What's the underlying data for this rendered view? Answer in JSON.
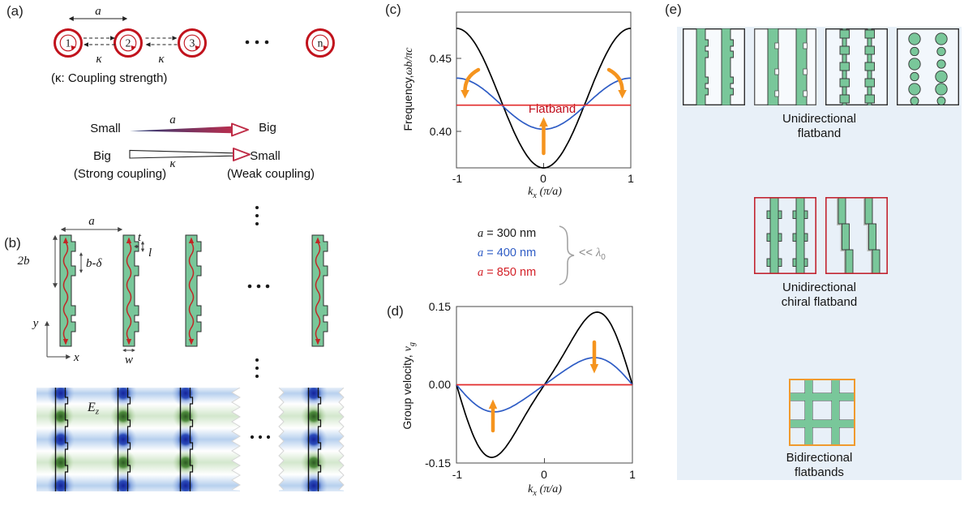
{
  "panels": {
    "a": {
      "label": "(a)",
      "rings": [
        "1",
        "2",
        "3",
        "n"
      ],
      "lattice_const": "a",
      "kappa": "κ",
      "note": "(κ: Coupling strength)",
      "row_a": {
        "left": "Small",
        "sym": "a",
        "right": "Big"
      },
      "row_k": {
        "left": "Big",
        "sym": "κ",
        "right": "Small"
      },
      "caption_strong": "(Strong coupling)",
      "caption_weak": "(Weak coupling)"
    },
    "b": {
      "label": "(b)",
      "dim_a": "a",
      "dim_2b": "2b",
      "dim_bdelta": "b-δ",
      "dim_t": "t",
      "dim_l": "l",
      "dim_w": "w",
      "axis_x": "x",
      "axis_y": "y",
      "field": "E",
      "field_sub": "z"
    },
    "c": {
      "label": "(c)",
      "ylabel_prefix": "Frequency,",
      "ylabel_math": "ωb/πc",
      "yticks": [
        "0.45",
        "0.40"
      ],
      "xticks": [
        "-1",
        "0",
        "1"
      ],
      "xlabel_k": "k",
      "xlabel_sub": "x",
      "xlabel_unit": "(π/a)",
      "flatband": "Flatband"
    },
    "d": {
      "label": "(d)",
      "ylabel_prefix": "Group velocity, ",
      "ylabel_math": "v",
      "ylabel_sub": "g",
      "yticks": [
        "0.15",
        "0.00",
        "-0.15"
      ],
      "xticks": [
        "-1",
        "0",
        "1"
      ],
      "xlabel_k": "k",
      "xlabel_sub": "x",
      "xlabel_unit": "(π/a)"
    },
    "legend": {
      "items": [
        {
          "sym": "a",
          "text": "= 300 nm",
          "color": "#1a1a1a"
        },
        {
          "sym": "a",
          "text": "= 400 nm",
          "color": "#2e5cc5"
        },
        {
          "sym": "a",
          "text": "= 850 nm",
          "color": "#d31f26"
        }
      ],
      "note_lt": "<<",
      "note_sym": "λ",
      "note_sub": "0"
    },
    "e": {
      "label": "(e)",
      "captions": [
        [
          "Unidirectional",
          "flatband"
        ],
        [
          "Unidirectional",
          "chiral flatband"
        ],
        [
          "Bidirectional",
          "flatbands"
        ]
      ]
    }
  },
  "chart_data": [
    {
      "id": "c",
      "type": "line",
      "xlabel": "k_x (π/a)",
      "ylabel": "Frequency, ωb/πc",
      "xlim": [
        -1,
        1
      ],
      "ylim": [
        0.375,
        0.482
      ],
      "xticks": [
        -1,
        0,
        1
      ],
      "yticks": [
        0.4,
        0.45
      ],
      "grid": false,
      "legend_position": "below",
      "series": [
        {
          "name": "a = 300 nm",
          "color": "#000000",
          "model": "offset-cos",
          "mean": 0.4228,
          "amplitude": 0.0478
        },
        {
          "name": "a = 400 nm",
          "color": "#2e5cc5",
          "model": "offset-cos",
          "mean": 0.419,
          "amplitude": 0.0175
        },
        {
          "name": "a = 850 nm",
          "color": "#e22b2b",
          "model": "flat",
          "value": 0.418
        }
      ],
      "annotation": "Flatband",
      "arrow_hints": [
        "curved-down-left",
        "up-at-center",
        "curved-down-right"
      ]
    },
    {
      "id": "d",
      "type": "line",
      "xlabel": "k_x (π/a)",
      "ylabel": "Group velocity, v_g",
      "xlim": [
        -1,
        1
      ],
      "ylim": [
        -0.15,
        0.15
      ],
      "xticks": [
        -1,
        0,
        1
      ],
      "yticks": [
        -0.15,
        0.0,
        0.15
      ],
      "grid": false,
      "series": [
        {
          "name": "a = 300 nm",
          "color": "#000000",
          "model": "skewed-sine",
          "amplitude": 0.131,
          "skew": -0.19
        },
        {
          "name": "a = 400 nm",
          "color": "#2e5cc5",
          "model": "skewed-sine",
          "amplitude": 0.0506,
          "skew": -0.12
        },
        {
          "name": "a = 850 nm",
          "color": "#e22b2b",
          "model": "flat",
          "value": 0
        }
      ],
      "arrow_hints": [
        "up-at-negative-k",
        "down-at-positive-k"
      ]
    }
  ],
  "colors": {
    "structure_green": "#79c79a",
    "outline": "#333333",
    "resonator_red": "#c1121c",
    "wave_red": "#c22525",
    "orange_arrow": "#f5941e",
    "flatband_red": "#c00d1c",
    "panel_e_bg": "#e8f0f8",
    "chiral_box_border": "#c22430",
    "bidirectional_box_border": "#f09a2e",
    "field_blue": "#16279b",
    "field_green": "#2c5a22"
  }
}
